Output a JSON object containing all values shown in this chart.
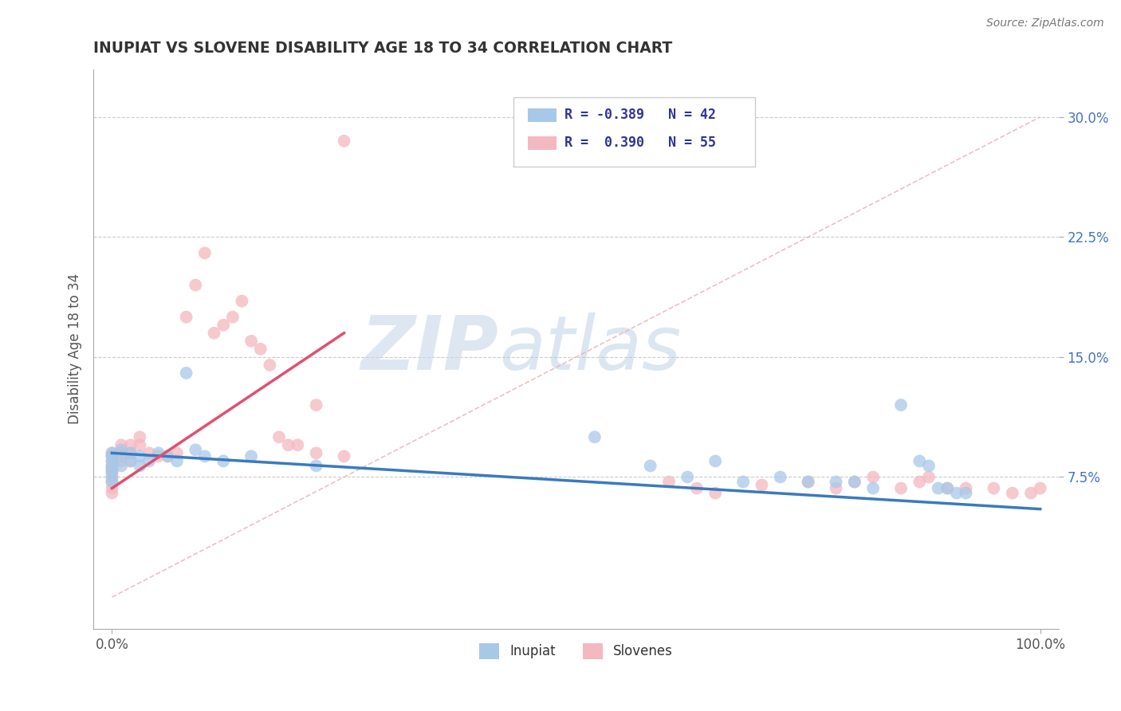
{
  "title": "INUPIAT VS SLOVENE DISABILITY AGE 18 TO 34 CORRELATION CHART",
  "source": "Source: ZipAtlas.com",
  "ylabel": "Disability Age 18 to 34",
  "xlim": [
    -0.02,
    1.02
  ],
  "ylim": [
    -0.02,
    0.33
  ],
  "xtick_positions": [
    0.0,
    1.0
  ],
  "xtick_labels": [
    "0.0%",
    "100.0%"
  ],
  "ytick_positions": [
    0.075,
    0.15,
    0.225,
    0.3
  ],
  "ytick_labels": [
    "7.5%",
    "15.0%",
    "22.5%",
    "30.0%"
  ],
  "color_inupiat": "#a8c8e8",
  "color_slovene": "#f4b8c0",
  "color_inupiat_line": "#3a7abf",
  "color_slovene_line": "#e05070",
  "color_diagonal": "#e8b0b8",
  "watermark_zip": "ZIP",
  "watermark_atlas": "atlas",
  "inupiat_x": [
    0.0,
    0.0,
    0.0,
    0.0,
    0.0,
    0.0,
    0.0,
    0.0,
    0.01,
    0.01,
    0.01,
    0.02,
    0.02,
    0.03,
    0.03,
    0.04,
    0.05,
    0.06,
    0.07,
    0.08,
    0.09,
    0.1,
    0.12,
    0.15,
    0.22,
    0.52,
    0.58,
    0.62,
    0.65,
    0.68,
    0.72,
    0.75,
    0.78,
    0.8,
    0.82,
    0.85,
    0.87,
    0.88,
    0.89,
    0.9,
    0.91,
    0.92
  ],
  "inupiat_y": [
    0.09,
    0.088,
    0.085,
    0.082,
    0.08,
    0.078,
    0.075,
    0.072,
    0.092,
    0.088,
    0.082,
    0.09,
    0.085,
    0.088,
    0.082,
    0.085,
    0.09,
    0.088,
    0.085,
    0.14,
    0.092,
    0.088,
    0.085,
    0.088,
    0.082,
    0.1,
    0.082,
    0.075,
    0.085,
    0.072,
    0.075,
    0.072,
    0.072,
    0.072,
    0.068,
    0.12,
    0.085,
    0.082,
    0.068,
    0.068,
    0.065,
    0.065
  ],
  "slovene_x": [
    0.0,
    0.0,
    0.0,
    0.0,
    0.0,
    0.0,
    0.0,
    0.0,
    0.0,
    0.0,
    0.01,
    0.01,
    0.01,
    0.02,
    0.02,
    0.02,
    0.03,
    0.03,
    0.04,
    0.05,
    0.06,
    0.07,
    0.08,
    0.09,
    0.1,
    0.11,
    0.12,
    0.13,
    0.14,
    0.15,
    0.16,
    0.17,
    0.18,
    0.19,
    0.2,
    0.22,
    0.25,
    0.6,
    0.63,
    0.65,
    0.7,
    0.75,
    0.78,
    0.8,
    0.82,
    0.85,
    0.87,
    0.88,
    0.9,
    0.92,
    0.95,
    0.97,
    0.99,
    1.0,
    0.22,
    0.25
  ],
  "slovene_y": [
    0.09,
    0.088,
    0.085,
    0.082,
    0.08,
    0.078,
    0.075,
    0.072,
    0.068,
    0.065,
    0.095,
    0.09,
    0.085,
    0.095,
    0.09,
    0.085,
    0.1,
    0.095,
    0.09,
    0.088,
    0.088,
    0.09,
    0.175,
    0.195,
    0.215,
    0.165,
    0.17,
    0.175,
    0.185,
    0.16,
    0.155,
    0.145,
    0.1,
    0.095,
    0.095,
    0.09,
    0.088,
    0.072,
    0.068,
    0.065,
    0.07,
    0.072,
    0.068,
    0.072,
    0.075,
    0.068,
    0.072,
    0.075,
    0.068,
    0.068,
    0.068,
    0.065,
    0.065,
    0.068,
    0.12,
    0.285
  ],
  "inupiat_line_x": [
    0.0,
    1.0
  ],
  "inupiat_line_y": [
    0.09,
    0.055
  ],
  "slovene_line_x": [
    0.0,
    0.25
  ],
  "slovene_line_y": [
    0.068,
    0.165
  ]
}
